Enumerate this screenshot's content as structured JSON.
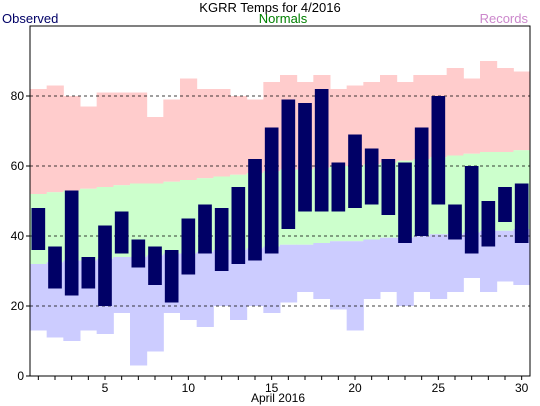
{
  "chart_data": {
    "type": "bar",
    "title": "KGRR Temps for 4/2016",
    "xlabel": "April 2016",
    "ylabel": "",
    "ylim": [
      0,
      100
    ],
    "xlim": [
      1,
      30
    ],
    "grid": "dashed-horizontal",
    "legend": [
      "Observed",
      "Normals",
      "Records"
    ],
    "yticks": [
      0,
      20,
      40,
      60,
      80
    ],
    "xticks": [
      5,
      10,
      15,
      20,
      25,
      30
    ],
    "colors": {
      "observed": "#000066",
      "normals": "#ccffcc",
      "records": "#ffcccc",
      "record_low": "#ccccff",
      "observed_label": "#000066",
      "normals_label": "#008000",
      "records_label": "#cc88cc"
    },
    "days": [
      1,
      2,
      3,
      4,
      5,
      6,
      7,
      8,
      9,
      10,
      11,
      12,
      13,
      14,
      15,
      16,
      17,
      18,
      19,
      20,
      21,
      22,
      23,
      24,
      25,
      26,
      27,
      28,
      29,
      30
    ],
    "series": [
      {
        "name": "Observed",
        "high": [
          48,
          37,
          53,
          34,
          43,
          47,
          39,
          37,
          36,
          45,
          49,
          48,
          54,
          62,
          71,
          79,
          78,
          82,
          61,
          69,
          65,
          62,
          61,
          71,
          80,
          49,
          60,
          50,
          54,
          55
        ],
        "low": [
          36,
          25,
          23,
          25,
          20,
          35,
          31,
          26,
          21,
          29,
          35,
          30,
          32,
          33,
          35,
          42,
          47,
          47,
          47,
          48,
          49,
          46,
          38,
          40,
          49,
          39,
          35,
          37,
          44,
          38
        ]
      },
      {
        "name": "Normals",
        "high": [
          52,
          52.5,
          53,
          53.5,
          54,
          54.5,
          55,
          55,
          55.5,
          56,
          56.5,
          57,
          57.5,
          58,
          58.5,
          59,
          59,
          59.5,
          60,
          60,
          60.5,
          61,
          61.5,
          62,
          62.5,
          63,
          63.5,
          64,
          64,
          64.5
        ],
        "low": [
          32,
          32.5,
          33,
          33,
          33.5,
          34,
          34,
          34.5,
          35,
          35,
          35.5,
          36,
          36,
          36.5,
          37,
          37.5,
          37.5,
          38,
          38.5,
          38.5,
          39,
          39.5,
          39.5,
          40,
          40.5,
          40.5,
          41,
          41.5,
          41.5,
          42
        ]
      },
      {
        "name": "Records",
        "high": [
          82,
          83,
          80,
          77,
          81,
          81,
          81,
          74,
          79,
          85,
          82,
          82,
          80,
          79,
          84,
          86,
          84,
          86,
          82,
          83,
          84,
          86,
          84,
          86,
          86,
          88,
          85,
          90,
          88,
          87
        ],
        "low": [
          13,
          11,
          10,
          13,
          12,
          18,
          3,
          7,
          18,
          16,
          14,
          20,
          16,
          20,
          18,
          21,
          24,
          22,
          19,
          13,
          22,
          24,
          20,
          24,
          22,
          24,
          28,
          24,
          27,
          26
        ]
      }
    ]
  }
}
